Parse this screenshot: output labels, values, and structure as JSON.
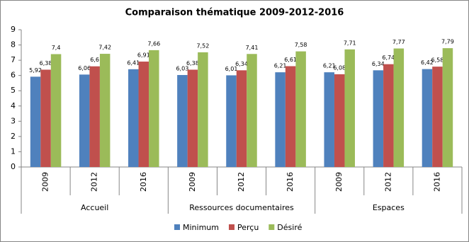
{
  "chart_data": {
    "type": "bar",
    "title": "Comparaison thématique 2009-2012-2016",
    "categories": [
      "2009",
      "2012",
      "2016",
      "2009",
      "2012",
      "2016",
      "2009",
      "2012",
      "2016"
    ],
    "group_labels": [
      "Accueil",
      "Ressources documentaires",
      "Espaces"
    ],
    "series": [
      {
        "name": "Minimum",
        "color": "#4f81bd",
        "values": [
          5.92,
          6.06,
          6.41,
          6.03,
          6.01,
          6.21,
          6.21,
          6.34,
          6.42
        ],
        "value_labels": [
          "5,92",
          "6,06",
          "6,41",
          "6,03",
          "6,01",
          "6,21",
          "6,21",
          "6,34",
          "6,42"
        ]
      },
      {
        "name": "Perçu",
        "color": "#c0504d",
        "values": [
          6.38,
          6.6,
          6.91,
          6.38,
          6.34,
          6.61,
          6.08,
          6.74,
          6.58
        ],
        "value_labels": [
          "6,38",
          "6,6",
          "6,91",
          "6,38",
          "6,34",
          "6,61",
          "6,08",
          "6,74",
          "6,58"
        ]
      },
      {
        "name": "Désiré",
        "color": "#9bbb59",
        "values": [
          7.4,
          7.42,
          7.66,
          7.52,
          7.41,
          7.58,
          7.71,
          7.77,
          7.79
        ],
        "value_labels": [
          "7,4",
          "7,42",
          "7,66",
          "7,52",
          "7,41",
          "7,58",
          "7,71",
          "7,77",
          "7,79"
        ]
      }
    ],
    "ylim": [
      0,
      9
    ],
    "yticks": [
      0,
      1,
      2,
      3,
      4,
      5,
      6,
      7,
      8,
      9
    ],
    "grid": false,
    "legend": "bottom"
  }
}
